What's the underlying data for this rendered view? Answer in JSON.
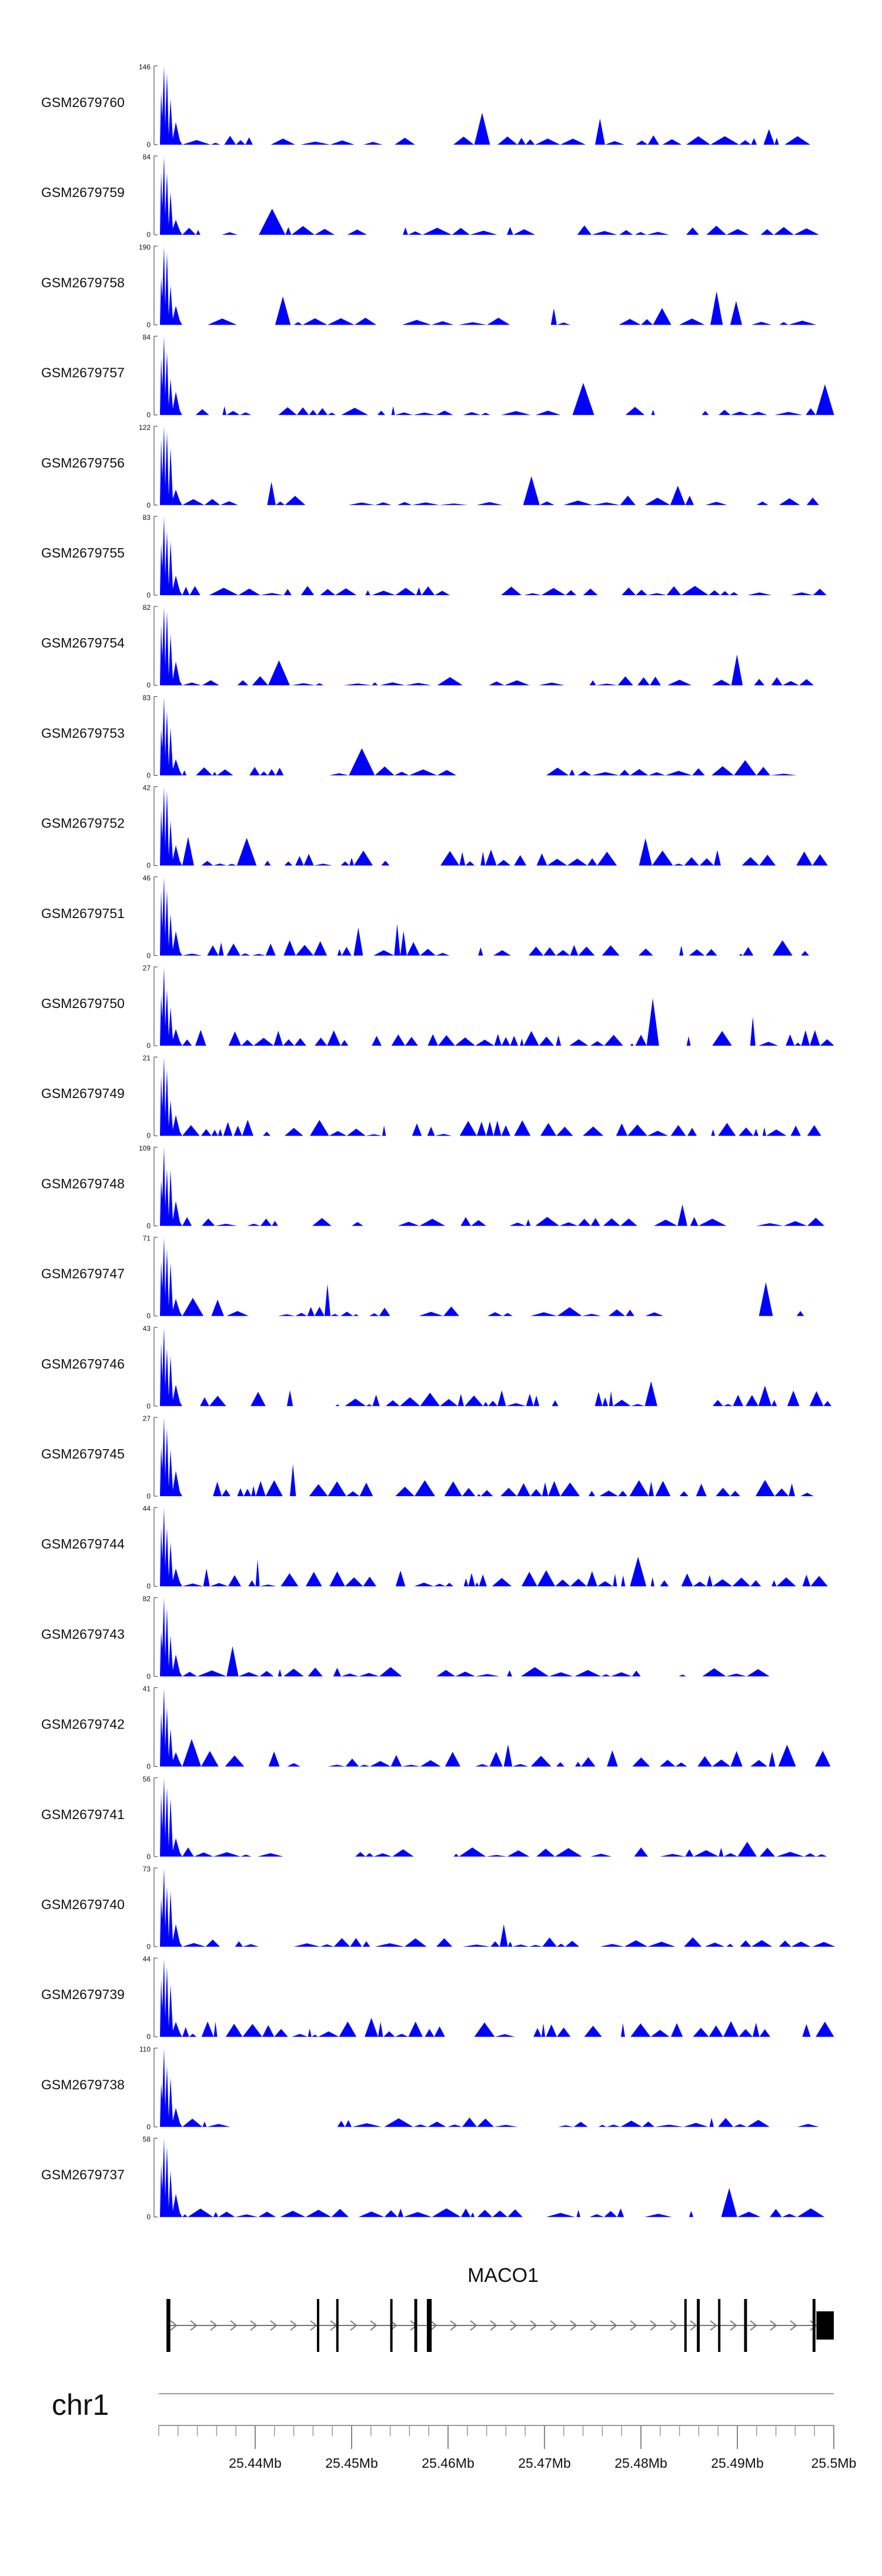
{
  "chart_data": {
    "type": "area",
    "region": {
      "chrom": "chr1",
      "start": 25.43,
      "end": 25.5,
      "unit": "Mb"
    },
    "fill_color": "#0000ff",
    "tracks": [
      {
        "name": "GSM2679760",
        "ymax": 146,
        "ymin_label": "0"
      },
      {
        "name": "GSM2679759",
        "ymax": 84,
        "ymin_label": "0"
      },
      {
        "name": "GSM2679758",
        "ymax": 190,
        "ymin_label": "0"
      },
      {
        "name": "GSM2679757",
        "ymax": 84,
        "ymin_label": "0"
      },
      {
        "name": "GSM2679756",
        "ymax": 122,
        "ymin_label": "0"
      },
      {
        "name": "GSM2679755",
        "ymax": 83,
        "ymin_label": "0"
      },
      {
        "name": "GSM2679754",
        "ymax": 82,
        "ymin_label": "0"
      },
      {
        "name": "GSM2679753",
        "ymax": 83,
        "ymin_label": "0"
      },
      {
        "name": "GSM2679752",
        "ymax": 42,
        "ymin_label": "0"
      },
      {
        "name": "GSM2679751",
        "ymax": 46,
        "ymin_label": "0"
      },
      {
        "name": "GSM2679750",
        "ymax": 27,
        "ymin_label": "0"
      },
      {
        "name": "GSM2679749",
        "ymax": 21,
        "ymin_label": "0"
      },
      {
        "name": "GSM2679748",
        "ymax": 109,
        "ymin_label": "0"
      },
      {
        "name": "GSM2679747",
        "ymax": 71,
        "ymin_label": "0"
      },
      {
        "name": "GSM2679746",
        "ymax": 43,
        "ymin_label": "0"
      },
      {
        "name": "GSM2679745",
        "ymax": 27,
        "ymin_label": "0"
      },
      {
        "name": "GSM2679744",
        "ymax": 44,
        "ymin_label": "0"
      },
      {
        "name": "GSM2679743",
        "ymax": 82,
        "ymin_label": "0"
      },
      {
        "name": "GSM2679742",
        "ymax": 41,
        "ymin_label": "0"
      },
      {
        "name": "GSM2679741",
        "ymax": 56,
        "ymin_label": "0"
      },
      {
        "name": "GSM2679740",
        "ymax": 73,
        "ymin_label": "0"
      },
      {
        "name": "GSM2679739",
        "ymax": 44,
        "ymin_label": "0"
      },
      {
        "name": "GSM2679738",
        "ymax": 110,
        "ymin_label": "0"
      },
      {
        "name": "GSM2679737",
        "ymax": 58,
        "ymin_label": "0"
      }
    ],
    "gene": {
      "name": "MACO1",
      "strand": "+",
      "start": 25.4308,
      "end": 25.5,
      "exons": [
        [
          25.4308,
          25.4312
        ],
        [
          25.4464,
          25.4466
        ],
        [
          25.4484,
          25.4486
        ],
        [
          25.454,
          25.4542
        ],
        [
          25.4565,
          25.4568
        ],
        [
          25.4578,
          25.4583
        ],
        [
          25.4845,
          25.4847
        ],
        [
          25.4858,
          25.4861
        ],
        [
          25.488,
          25.4882
        ],
        [
          25.4907,
          25.491
        ],
        [
          25.4978,
          25.4981
        ],
        [
          25.4982,
          25.5
        ]
      ]
    },
    "axis": {
      "chrom_label": "chr1",
      "ticks": [
        25.44,
        25.45,
        25.46,
        25.47,
        25.48,
        25.49,
        25.5
      ],
      "tick_labels": [
        "25.44Mb",
        "25.45Mb",
        "25.46Mb",
        "25.47Mb",
        "25.48Mb",
        "25.49Mb",
        "25.5Mb"
      ],
      "minor_tick_step": 0.002
    }
  }
}
